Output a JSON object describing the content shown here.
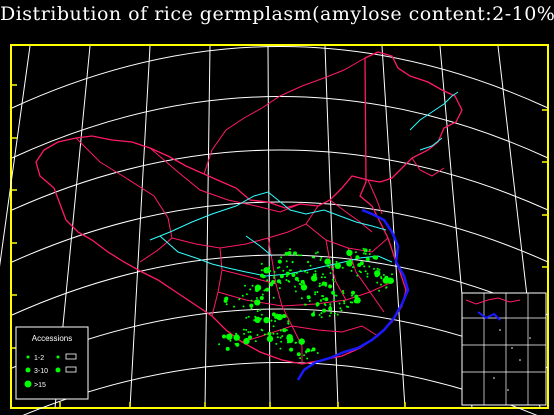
{
  "title": "Distribution of rice germplasm(amylose content:2-10%)",
  "legend": {
    "heading": "Accessions",
    "classes": [
      {
        "label": "1-2"
      },
      {
        "label": "3-10"
      },
      {
        "label": ">15"
      }
    ]
  },
  "colors": {
    "background": "#000000",
    "frame": "#ffff00",
    "graticule": "#ffffff",
    "province_border": "#ff1a66",
    "river": "#33ffff",
    "coastline": "#1a1aff",
    "accession_marker": "#00ff00",
    "legend_text": "#ffffff"
  }
}
